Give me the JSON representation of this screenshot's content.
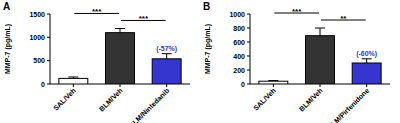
{
  "chart_data": [
    {
      "type": "bar",
      "title": "A",
      "y_label": "MMP-7 (pg/mL)",
      "categories": [
        "SAL/Veh",
        "BLM/Veh",
        "BLM/Nintedanib"
      ],
      "values": [
        120,
        1100,
        540
      ],
      "errors": [
        30,
        90,
        110
      ],
      "colors": [
        "#ffffff",
        "#333333",
        "#3535d0"
      ],
      "ylim": [
        0,
        1500
      ],
      "yticks": [
        0,
        500,
        1000,
        1500
      ],
      "annotations": [
        {
          "category": "BLM/Nintedanib",
          "text": "(-57%)"
        }
      ],
      "significance": [
        {
          "from": "SAL/Veh",
          "to": "BLM/Veh",
          "label": "***"
        },
        {
          "from": "BLM/Veh",
          "to": "BLM/Nintedanib",
          "label": "***"
        }
      ]
    },
    {
      "type": "bar",
      "title": "B",
      "y_label": "MMP-7 (pg/mL)",
      "categories": [
        "SAL/Veh",
        "BLM/Veh",
        "BLM/Pirfenidone"
      ],
      "values": [
        40,
        690,
        300
      ],
      "errors": [
        10,
        110,
        60
      ],
      "colors": [
        "#ffffff",
        "#333333",
        "#3535d0"
      ],
      "ylim": [
        0,
        1000
      ],
      "yticks": [
        0,
        200,
        400,
        600,
        800,
        1000
      ],
      "annotations": [
        {
          "category": "BLM/Pirfenidone",
          "text": "(-60%)"
        }
      ],
      "significance": [
        {
          "from": "SAL/Veh",
          "to": "BLM/Veh",
          "label": "***"
        },
        {
          "from": "BLM/Veh",
          "to": "BLM/Pirfenidone",
          "label": "**"
        }
      ]
    }
  ]
}
